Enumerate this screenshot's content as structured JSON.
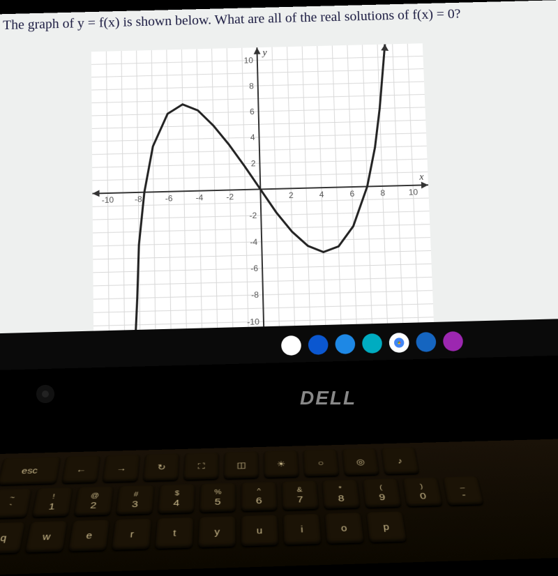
{
  "question_text": "The graph of y = f(x) is shown below. What are all of the real solutions of f(x) = 0?",
  "chart": {
    "type": "line",
    "x_axis_label": "x",
    "y_axis_label": "y",
    "xlim": [
      -11,
      11
    ],
    "ylim": [
      -11,
      11
    ],
    "xtick_step": 2,
    "ytick_step": 2,
    "xtick_labels": [
      "-10",
      "-8",
      "-6",
      "-4",
      "-2",
      "2",
      "4",
      "6",
      "8",
      "10"
    ],
    "ytick_labels": [
      "-10",
      "-8",
      "-6",
      "-4",
      "-2",
      "2",
      "4",
      "6",
      "8",
      "10"
    ],
    "grid_color": "#d8d8d8",
    "axis_color": "#333333",
    "curve_color": "#222222",
    "curve_width": 3,
    "background_color": "#ffffff",
    "curve_points": [
      [
        -8.3,
        -11
      ],
      [
        -8.15,
        -8
      ],
      [
        -8,
        -4
      ],
      [
        -7.6,
        0
      ],
      [
        -7,
        3.5
      ],
      [
        -6,
        6
      ],
      [
        -5,
        6.7
      ],
      [
        -4,
        6.2
      ],
      [
        -3,
        5
      ],
      [
        -2,
        3.5
      ],
      [
        -1,
        1.8
      ],
      [
        0,
        0
      ],
      [
        1,
        -1.8
      ],
      [
        2,
        -3.3
      ],
      [
        3,
        -4.4
      ],
      [
        4,
        -4.9
      ],
      [
        5,
        -4.5
      ],
      [
        6,
        -3
      ],
      [
        7,
        0
      ],
      [
        7.6,
        3
      ],
      [
        8,
        6
      ],
      [
        8.3,
        9
      ],
      [
        8.5,
        11
      ]
    ]
  },
  "taskbar": {
    "icons": [
      {
        "name": "earth-icon",
        "bg": "#ffffff",
        "fg": "#1e88e5"
      },
      {
        "name": "app-icon",
        "bg": "#0b57d0",
        "fg": "#ffffff"
      },
      {
        "name": "camera-icon",
        "bg": "#1e88e5",
        "fg": "#ffffff"
      },
      {
        "name": "drive-icon",
        "bg": "#00acc1",
        "fg": "#ffffff"
      },
      {
        "name": "chrome-icon",
        "bg": "linear",
        "fg": ""
      },
      {
        "name": "record-icon",
        "bg": "#1565c0",
        "fg": "#ffffff"
      },
      {
        "name": "play-icon",
        "bg": "#9c27b0",
        "fg": "#ffffff"
      }
    ]
  },
  "brand": "DELL",
  "keyboard": {
    "row1": [
      {
        "label": "esc",
        "wide": true
      },
      {
        "label": "←"
      },
      {
        "label": "→"
      },
      {
        "label": "↻"
      },
      {
        "label": "⛶"
      },
      {
        "label": "◫"
      },
      {
        "label": "☀"
      },
      {
        "label": "○"
      },
      {
        "label": "◎"
      },
      {
        "label": "♪"
      }
    ],
    "row2": [
      {
        "top": "~",
        "bot": "`"
      },
      {
        "top": "!",
        "bot": "1"
      },
      {
        "top": "@",
        "bot": "2"
      },
      {
        "top": "#",
        "bot": "3"
      },
      {
        "top": "$",
        "bot": "4"
      },
      {
        "top": "%",
        "bot": "5"
      },
      {
        "top": "^",
        "bot": "6"
      },
      {
        "top": "&",
        "bot": "7"
      },
      {
        "top": "*",
        "bot": "8"
      },
      {
        "top": "(",
        "bot": "9"
      },
      {
        "top": ")",
        "bot": "0"
      },
      {
        "top": "_",
        "bot": "-"
      }
    ],
    "row3": [
      {
        "label": "q"
      },
      {
        "label": "w"
      },
      {
        "label": "e"
      },
      {
        "label": "r"
      },
      {
        "label": "t"
      },
      {
        "label": "y"
      },
      {
        "label": "u"
      },
      {
        "label": "i"
      },
      {
        "label": "o"
      },
      {
        "label": "p"
      }
    ]
  }
}
